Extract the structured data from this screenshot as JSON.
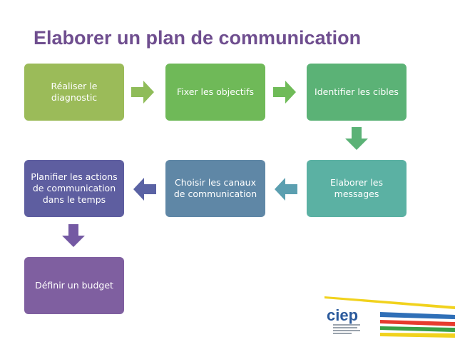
{
  "title": "Elaborer un plan de communication",
  "steps": [
    {
      "label": "Réaliser le diagnostic",
      "color": "#9bbb59"
    },
    {
      "label": "Fixer les objectifs",
      "color": "#6fb958"
    },
    {
      "label": "Identifier les cibles",
      "color": "#5bb276"
    },
    {
      "label": "Elaborer les messages",
      "color": "#5bb1a3"
    },
    {
      "label": "Choisir les canaux de communication",
      "color": "#5f87a6"
    },
    {
      "label": "Planifier les actions de communication dans le temps",
      "color": "#5e5ea0"
    },
    {
      "label": "Définir un budget",
      "color": "#7f5fa0"
    }
  ],
  "logo": {
    "text": "ciep",
    "icon": "ciep-logo-icon"
  }
}
